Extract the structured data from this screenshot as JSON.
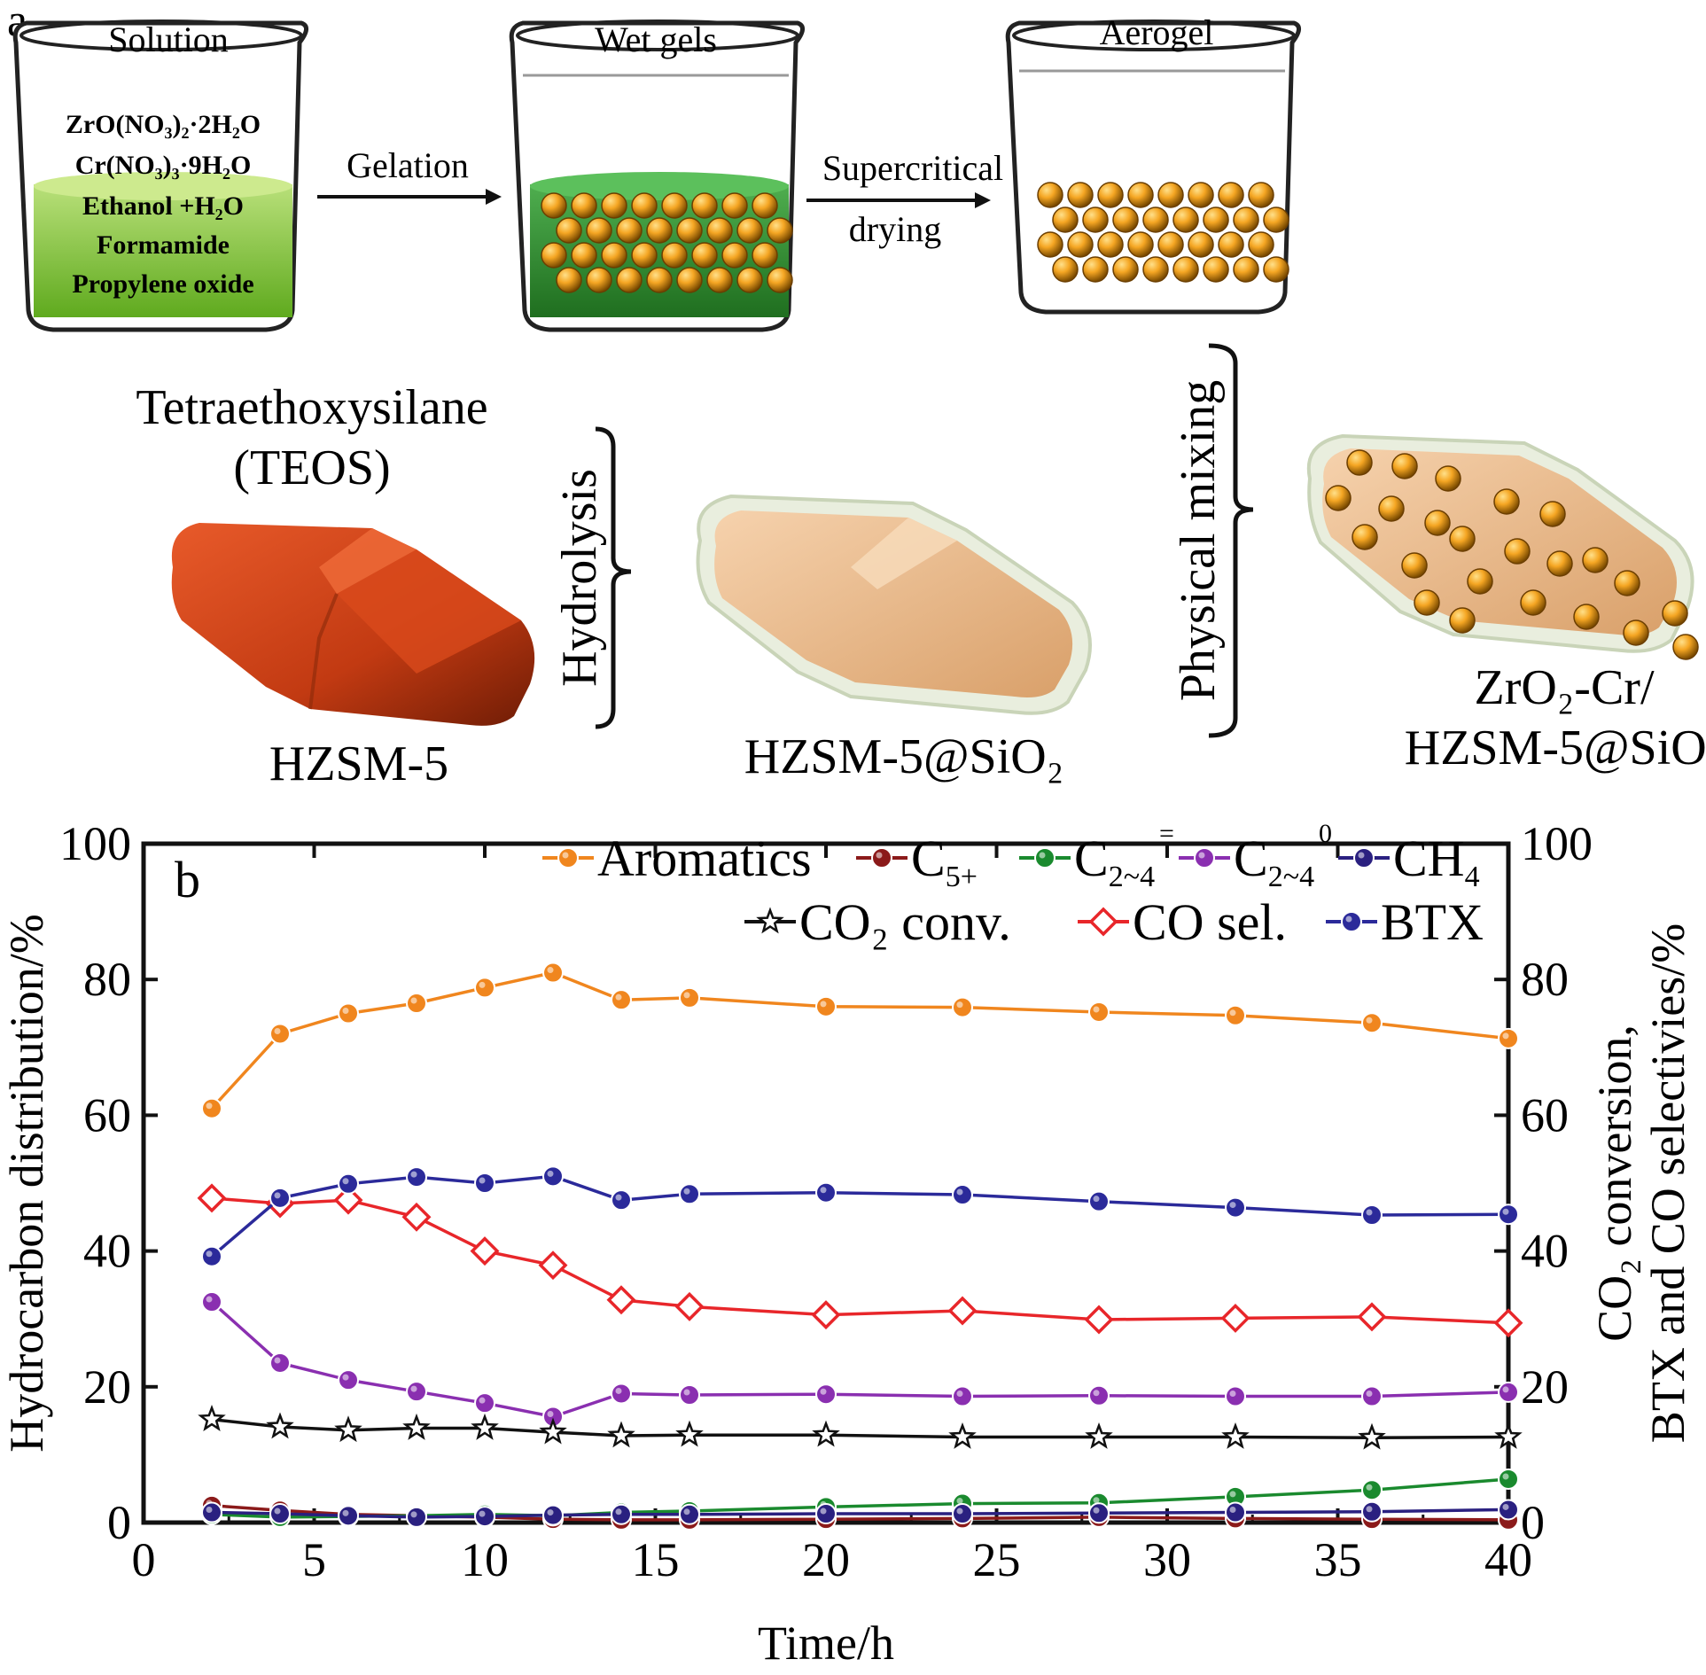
{
  "panel_a": {
    "label": "a",
    "beakers": {
      "solution": "Solution",
      "wet_gels": "Wet gels",
      "aerogel": "Aerogel"
    },
    "solution_contents": [
      "ZrO(NO₃)₂·2H₂O",
      "Cr(NO₃)₃·9H₂O",
      "Ethanol +H₂O",
      "Formamide",
      "Propylene oxide"
    ],
    "steps": {
      "gelation": "Gelation",
      "supercritical": "Supercritical",
      "drying": "drying",
      "hydrolysis": "Hydrolysis",
      "physical_mixing": "Physical mixing"
    },
    "teos_line1": "Tetraethoxysilane",
    "teos_line2": "(TEOS)",
    "hzsm5": "HZSM-5",
    "hzsm5_sio2": "HZSM-5@SiO₂",
    "final_line1": "ZrO₂-Cr/",
    "final_line2": "HZSM-5@SiO₂",
    "colors": {
      "liquid": "#8dc63f",
      "gel": "#2e8b2e",
      "sphere": "#f5a623",
      "crystal": "#d2401a",
      "coated": "#e8b98a"
    }
  },
  "chart_data": {
    "type": "line",
    "panel_label": "b",
    "xlabel": "Time/h",
    "ylabel_left": "Hydrocarbon distribution/%",
    "ylabel_right_line1": "CO₂ conversion,",
    "ylabel_right_line2": "BTX and CO selectivies/%",
    "xlim": [
      0,
      40
    ],
    "ylim": [
      0,
      100
    ],
    "xticks": [
      0,
      5,
      10,
      15,
      20,
      25,
      30,
      35,
      40
    ],
    "yticks": [
      0,
      20,
      40,
      60,
      80,
      100
    ],
    "x": [
      2,
      4,
      6,
      8,
      10,
      12,
      14,
      16,
      20,
      24,
      28,
      32,
      36,
      40
    ],
    "series": [
      {
        "name": "Aromatics",
        "color": "#f0861e",
        "marker": "circle",
        "values": [
          61,
          72,
          75,
          76.5,
          78.8,
          81,
          77,
          77.3,
          76,
          75.9,
          75.2,
          74.7,
          73.6,
          71.3
        ]
      },
      {
        "name": "C5+",
        "color": "#8b1a1a",
        "marker": "circle",
        "values": [
          2.5,
          1.8,
          1.2,
          1.0,
          0.8,
          0.5,
          0.4,
          0.4,
          0.5,
          0.6,
          0.8,
          0.6,
          0.5,
          0.4
        ]
      },
      {
        "name": "C2~4=",
        "color": "#1a8a2e",
        "marker": "circle",
        "values": [
          1.2,
          0.8,
          0.9,
          1.0,
          1.2,
          1.0,
          1.5,
          1.7,
          2.3,
          2.8,
          2.9,
          3.8,
          4.8,
          6.4
        ]
      },
      {
        "name": "C2~40",
        "color": "#8a2fb0",
        "marker": "circle",
        "values": [
          32.5,
          23.5,
          21,
          19.3,
          17.6,
          15.6,
          19,
          18.8,
          18.9,
          18.6,
          18.7,
          18.6,
          18.6,
          19.2
        ]
      },
      {
        "name": "CH4",
        "color": "#2a2080",
        "marker": "circle",
        "values": [
          1.5,
          1.3,
          1.0,
          0.8,
          0.9,
          1.1,
          1.2,
          1.2,
          1.3,
          1.3,
          1.4,
          1.5,
          1.6,
          1.9
        ]
      },
      {
        "name": "CO2 conv.",
        "color": "#111111",
        "marker": "star",
        "values": [
          15.2,
          14.1,
          13.6,
          13.9,
          13.9,
          13.3,
          12.8,
          12.9,
          12.9,
          12.6,
          12.6,
          12.6,
          12.5,
          12.6
        ]
      },
      {
        "name": "CO sel.",
        "color": "#e8262a",
        "marker": "diamond",
        "values": [
          47.8,
          47,
          47.5,
          45,
          40,
          37.9,
          32.8,
          31.8,
          30.6,
          31.2,
          29.9,
          30.1,
          30.3,
          29.4
        ]
      },
      {
        "name": "BTX",
        "color": "#2b2a9a",
        "marker": "circle",
        "values": [
          39.2,
          47.8,
          49.9,
          50.9,
          50,
          51,
          47.5,
          48.4,
          48.6,
          48.3,
          47.3,
          46.4,
          45.3,
          45.4
        ]
      }
    ],
    "legend": {
      "row1": [
        "Aromatics",
        "C",
        "C",
        "C",
        "CH"
      ],
      "row1_sub": [
        "",
        "5+",
        "2~4",
        "2~4",
        "4"
      ],
      "row1_sup": [
        "",
        "",
        "=",
        "0",
        ""
      ],
      "row2": [
        "CO₂ conv.",
        "CO sel.",
        "BTX"
      ],
      "placement": "top"
    }
  }
}
